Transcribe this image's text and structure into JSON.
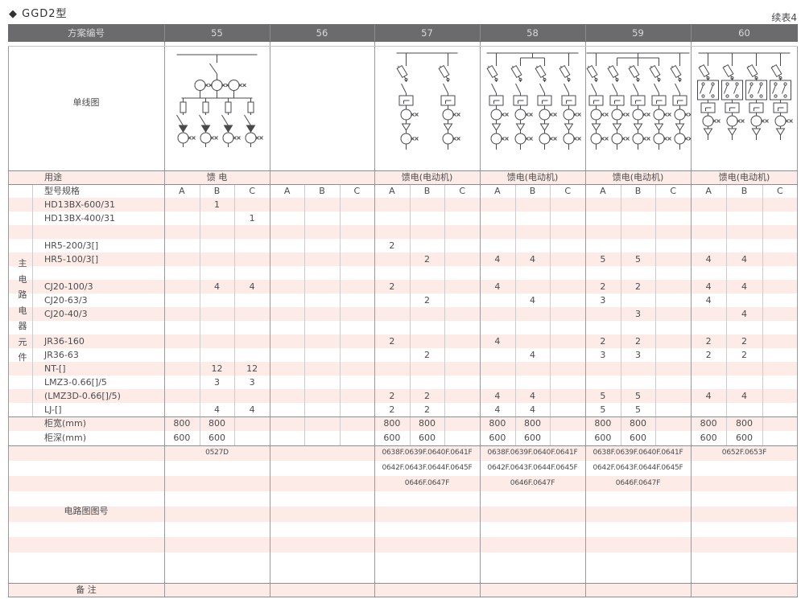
{
  "page": {
    "title": "◆ GGD2型",
    "continuation": "续表4"
  },
  "header": {
    "label": "方案编号",
    "schemes": [
      "55",
      "56",
      "57",
      "58",
      "59",
      "60"
    ]
  },
  "diagram_section": {
    "label": "单线图"
  },
  "usage": {
    "label": "用途",
    "values": [
      "馈 电",
      "",
      "馈电(电动机)",
      "馈电(电动机)",
      "馈电(电动机)",
      "馈电(电动机)"
    ]
  },
  "spec": {
    "label": "型号规格",
    "subcolumns": [
      "A",
      "B",
      "C"
    ]
  },
  "side_label": "主电路电器元件",
  "components": [
    {
      "label": "HD13BX-600/31",
      "cells": {
        "55": {
          "B": "1"
        }
      }
    },
    {
      "label": "HD13BX-400/31",
      "cells": {
        "55": {
          "C": "1"
        }
      }
    },
    {
      "label": "",
      "cells": {}
    },
    {
      "label": "HR5-200/3[]",
      "cells": {
        "57": {
          "A": "2"
        }
      }
    },
    {
      "label": "HR5-100/3[]",
      "cells": {
        "57": {
          "B": "2"
        },
        "58": {
          "A": "4",
          "B": "4"
        },
        "59": {
          "A": "5",
          "B": "5"
        },
        "60": {
          "A": "4",
          "B": "4"
        }
      }
    },
    {
      "label": "",
      "cells": {}
    },
    {
      "label": "CJ20-100/3",
      "cells": {
        "55": {
          "B": "4",
          "C": "4"
        },
        "57": {
          "A": "2"
        },
        "58": {
          "A": "4"
        },
        "59": {
          "A": "2",
          "B": "2"
        },
        "60": {
          "A": "4",
          "B": "4"
        }
      }
    },
    {
      "label": "CJ20-63/3",
      "cells": {
        "57": {
          "B": "2"
        },
        "58": {
          "B": "4"
        },
        "59": {
          "A": "3"
        },
        "60": {
          "A": "4"
        }
      }
    },
    {
      "label": "CJ20-40/3",
      "cells": {
        "59": {
          "B": "3"
        },
        "60": {
          "B": "4"
        }
      }
    },
    {
      "label": "",
      "cells": {}
    },
    {
      "label": "JR36-160",
      "cells": {
        "57": {
          "A": "2"
        },
        "58": {
          "A": "4"
        },
        "59": {
          "A": "2",
          "B": "2"
        },
        "60": {
          "A": "2",
          "B": "2"
        }
      }
    },
    {
      "label": "JR36-63",
      "cells": {
        "57": {
          "B": "2"
        },
        "58": {
          "B": "4"
        },
        "59": {
          "A": "3",
          "B": "3"
        },
        "60": {
          "A": "2",
          "B": "2"
        }
      }
    },
    {
      "label": "NT-[]",
      "cells": {
        "55": {
          "B": "12",
          "C": "12"
        }
      }
    },
    {
      "label": "LMZ3-0.66[]/5",
      "cells": {
        "55": {
          "B": "3",
          "C": "3"
        }
      }
    },
    {
      "label": "(LMZ3D-0.66[]/5)",
      "cells": {
        "57": {
          "A": "2",
          "B": "2"
        },
        "58": {
          "A": "4",
          "B": "4"
        },
        "59": {
          "A": "5",
          "B": "5"
        },
        "60": {
          "A": "4",
          "B": "4"
        }
      }
    },
    {
      "label": "LJ-[]",
      "cells": {
        "55": {
          "B": "4",
          "C": "4"
        },
        "57": {
          "A": "2",
          "B": "2"
        },
        "58": {
          "A": "4",
          "B": "4"
        },
        "59": {
          "A": "5",
          "B": "5"
        }
      }
    }
  ],
  "cabinet": [
    {
      "label": "柜宽(mm)",
      "cells": {
        "55": {
          "A": "800",
          "B": "800"
        },
        "57": {
          "A": "800",
          "B": "800"
        },
        "58": {
          "A": "800",
          "B": "800"
        },
        "59": {
          "A": "800",
          "B": "800"
        },
        "60": {
          "A": "800",
          "B": "800"
        }
      }
    },
    {
      "label": "柜深(mm)",
      "cells": {
        "55": {
          "A": "600",
          "B": "600"
        },
        "57": {
          "A": "600",
          "B": "600"
        },
        "58": {
          "A": "600",
          "B": "600"
        },
        "59": {
          "A": "600",
          "B": "600"
        },
        "60": {
          "A": "600",
          "B": "600"
        }
      }
    }
  ],
  "circuit": {
    "label": "电路图图号",
    "rows": [
      [
        "0527D",
        "",
        "0638F.0639F.0640F.0641F",
        "0638F.0639F.0640F.0641F",
        "0638F.0639F.0640F.0641F",
        "0652F.0653F"
      ],
      [
        "",
        "",
        "0642F.0643F.0644F.0645F",
        "0642F.0643F.0644F.0645F",
        "0642F.0643F.0644F.0645F",
        ""
      ],
      [
        "",
        "",
        "0646F.0647F",
        "0646F.0647F",
        "0646F.0647F",
        ""
      ],
      [
        "",
        "",
        "",
        "",
        "",
        ""
      ],
      [
        "",
        "",
        "",
        "",
        "",
        ""
      ],
      [
        "",
        "",
        "",
        "",
        "",
        ""
      ],
      [
        "",
        "",
        "",
        "",
        "",
        ""
      ],
      [
        "",
        "",
        "",
        "",
        "",
        ""
      ],
      [
        "",
        "",
        "",
        "",
        "",
        ""
      ]
    ]
  },
  "remarks": {
    "label": "备 注"
  },
  "diagrams": [
    {
      "scheme": "55",
      "kind": "incoming-feeder",
      "branches": 4,
      "grouped": false
    },
    {
      "scheme": "56",
      "kind": "empty",
      "branches": 0,
      "grouped": false
    },
    {
      "scheme": "57",
      "kind": "motor-feeder",
      "branches": 2,
      "grouped": false
    },
    {
      "scheme": "58",
      "kind": "motor-feeder",
      "branches": 4,
      "grouped": true
    },
    {
      "scheme": "59",
      "kind": "motor-feeder",
      "branches": 5,
      "grouped": true
    },
    {
      "scheme": "60",
      "kind": "reversing-motor-feeder",
      "branches": 4,
      "grouped": false
    }
  ],
  "colors": {
    "stripe": "#fcebe6",
    "header_bg": "#6b6b6d",
    "header_text": "#d9d9d9",
    "grid": "#9a9a9a",
    "subgrid": "#cccccc",
    "section_line": "#8e8e8e",
    "text": "#4c4c4e",
    "diagram_stroke": "#4a4a4c"
  }
}
